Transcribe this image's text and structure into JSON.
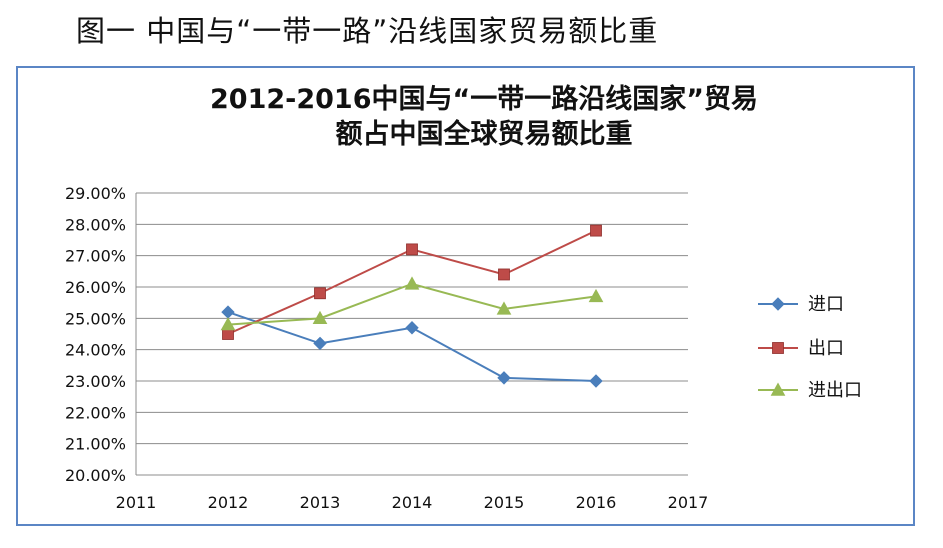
{
  "figure_caption": "图一   中国与“一带一路”沿线国家贸易额比重",
  "chart_data": {
    "type": "line",
    "title_line1": "2012-2016中国与“一带一路沿线国家”贸易",
    "title_line2": "额占中国全球贸易额比重",
    "x": [
      2012,
      2013,
      2014,
      2015,
      2016
    ],
    "x_ticks": [
      "2011",
      "2012",
      "2013",
      "2014",
      "2015",
      "2016",
      "2017"
    ],
    "xlim": [
      2011,
      2017
    ],
    "y_ticks": [
      "29.00%",
      "28.00%",
      "27.00%",
      "26.00%",
      "25.00%",
      "24.00%",
      "23.00%",
      "22.00%",
      "21.00%",
      "20.00%"
    ],
    "ylim": [
      20,
      29
    ],
    "grid": true,
    "legend_position": "right",
    "series": [
      {
        "name": "进口",
        "color": "#4a7ebb",
        "marker": "diamond",
        "values": [
          25.2,
          24.2,
          24.7,
          23.1,
          23.0
        ]
      },
      {
        "name": "出口",
        "color": "#be4b48",
        "marker": "square",
        "values": [
          24.5,
          25.8,
          27.2,
          26.4,
          27.8
        ]
      },
      {
        "name": "进出口",
        "color": "#98b954",
        "marker": "triangle",
        "values": [
          24.8,
          25.0,
          26.1,
          25.3,
          25.7
        ]
      }
    ]
  }
}
